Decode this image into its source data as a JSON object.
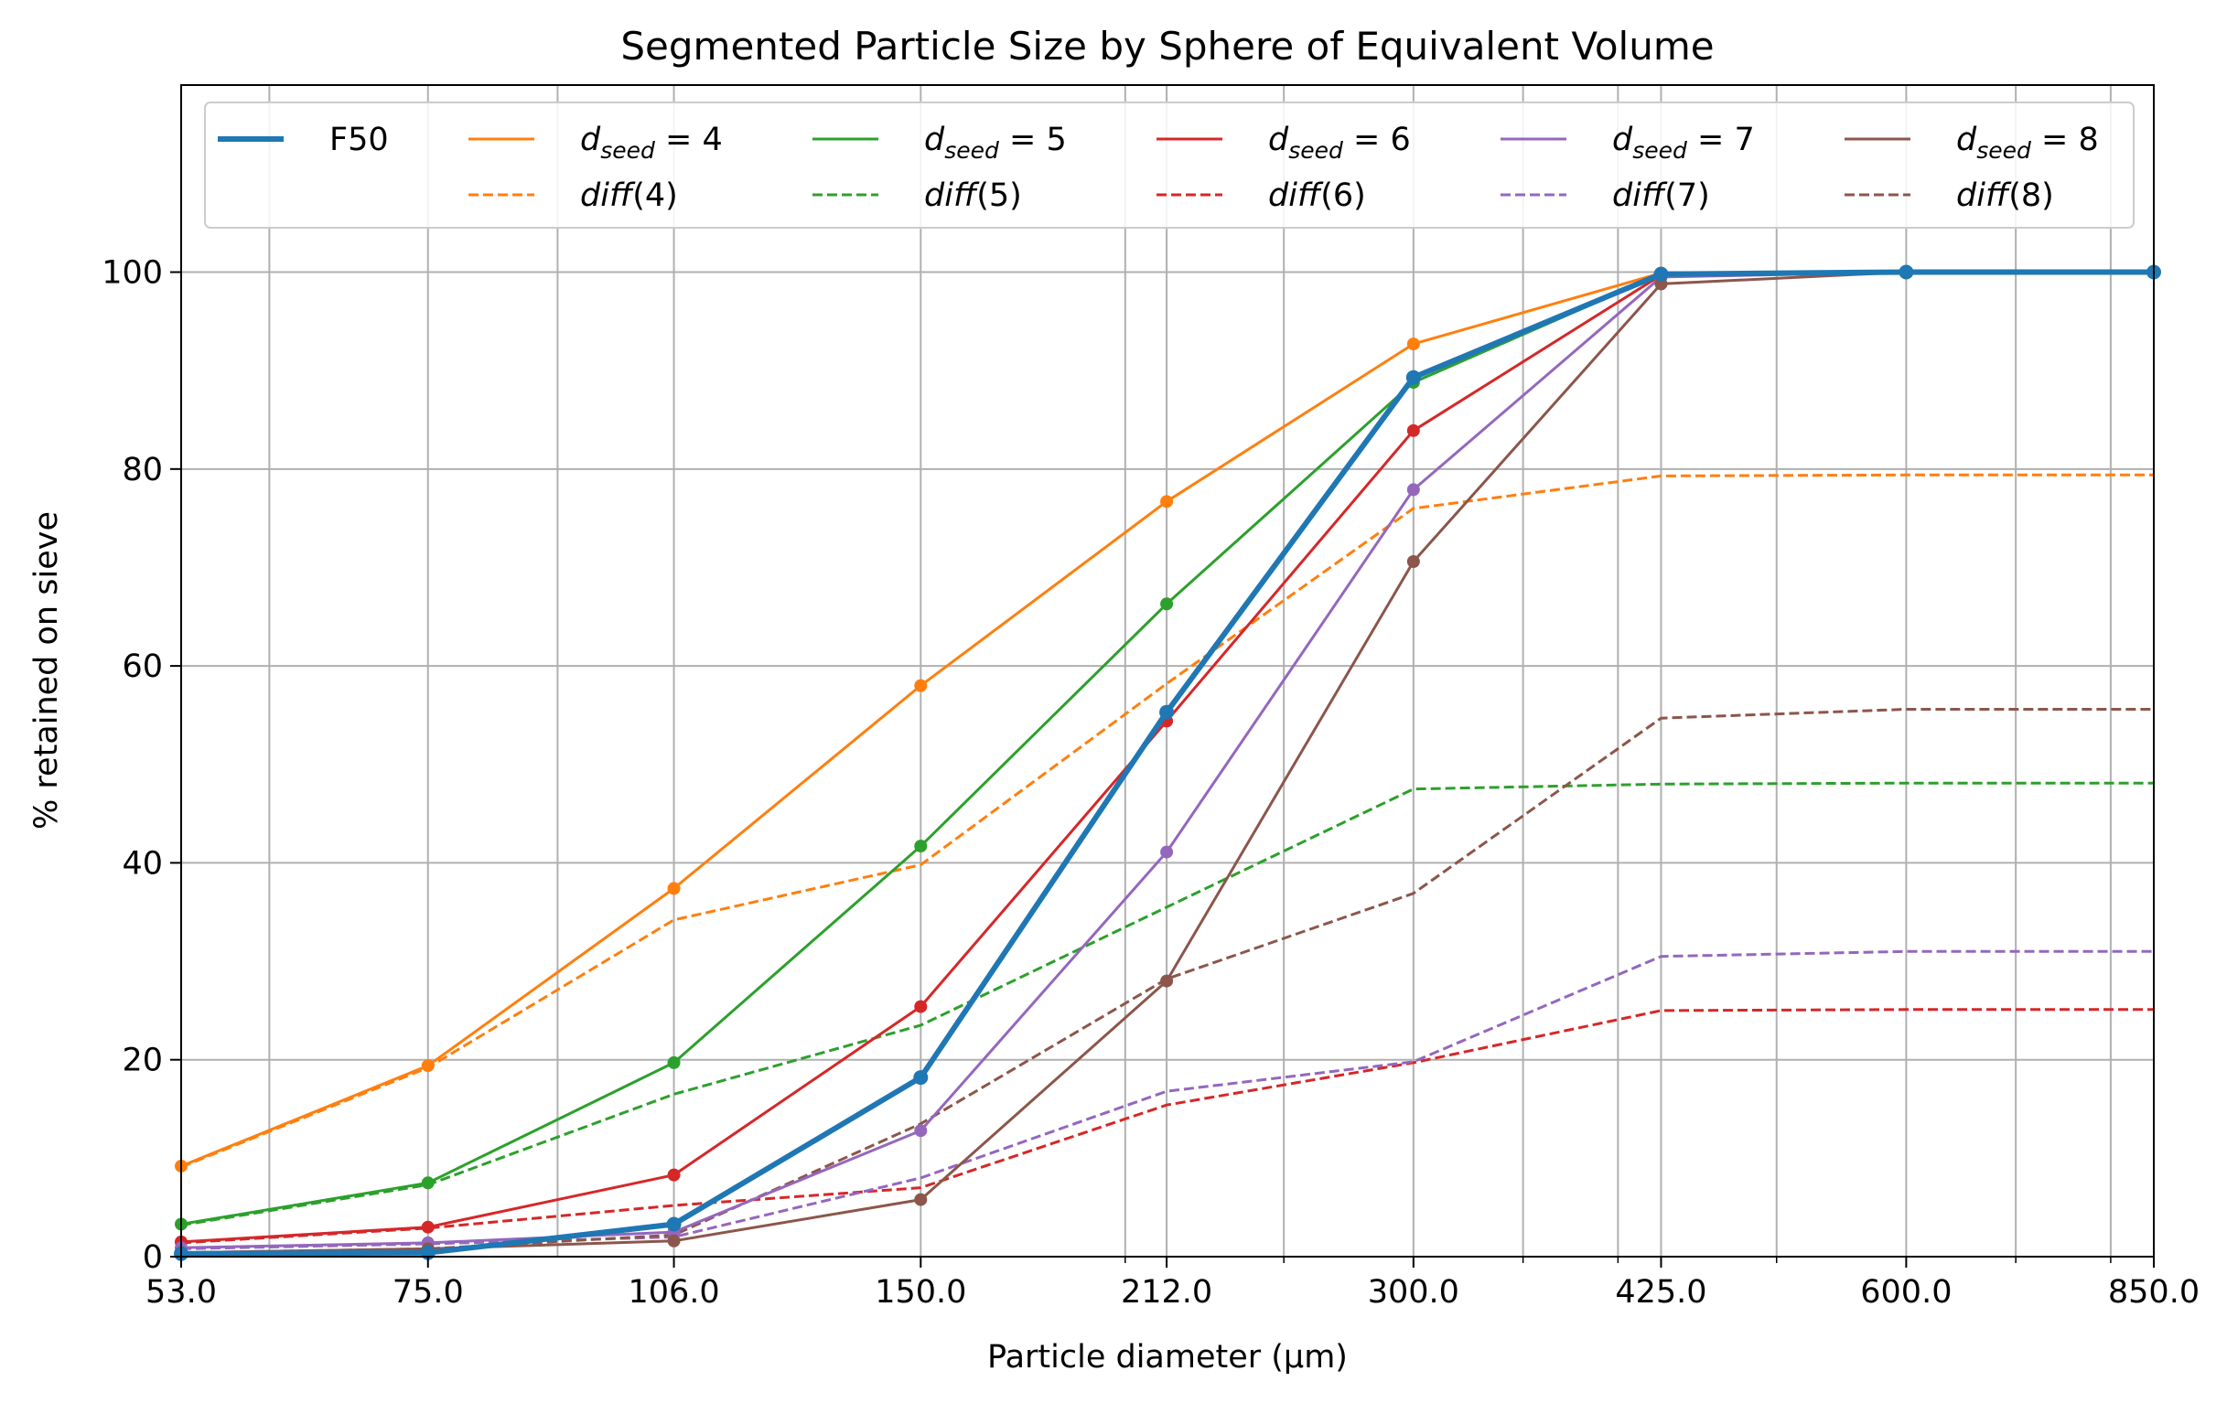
{
  "chart_data": {
    "type": "line",
    "title": "Segmented Particle Size by Sphere of Equivalent Volume",
    "xlabel": "Particle diameter (μm)",
    "ylabel": "% retained on sieve",
    "x_scale": "log",
    "x": [
      53,
      75,
      106,
      150,
      212,
      300,
      425,
      600,
      850
    ],
    "x_tick_labels": [
      "53.0",
      "75.0",
      "106.0",
      "150.0",
      "212.0",
      "300.0",
      "425.0",
      "600.0",
      "850.0"
    ],
    "xlim": [
      53,
      850
    ],
    "ylim": [
      0,
      119
    ],
    "y_ticks": [
      0,
      20,
      40,
      60,
      80,
      100
    ],
    "y_tick_labels": [
      "0",
      "20",
      "40",
      "60",
      "80",
      "100"
    ],
    "grid": true,
    "legend_position": "top",
    "series": [
      {
        "name": "F50",
        "color": "#1f77b4",
        "style": "solid",
        "width": "thick",
        "markers": true,
        "values": [
          0.3,
          0.4,
          3.3,
          18.2,
          55.3,
          89.3,
          99.8,
          100,
          100
        ]
      },
      {
        "name": "dseed = 4",
        "color": "#ff7f0e",
        "style": "solid",
        "markers": true,
        "values": [
          9.2,
          19.4,
          37.4,
          58.0,
          76.7,
          92.7,
          99.9,
          100,
          100
        ]
      },
      {
        "name": "diff(4)",
        "color": "#ff7f0e",
        "style": "dashed",
        "markers": false,
        "values": [
          9.1,
          19.2,
          34.2,
          39.8,
          58.2,
          76.0,
          79.3,
          79.4,
          79.4
        ]
      },
      {
        "name": "dseed = 5",
        "color": "#2ca02c",
        "style": "solid",
        "markers": true,
        "values": [
          3.3,
          7.5,
          19.7,
          41.7,
          66.3,
          88.8,
          99.8,
          100,
          100
        ]
      },
      {
        "name": "diff(5)",
        "color": "#2ca02c",
        "style": "dashed",
        "markers": false,
        "values": [
          3.2,
          7.3,
          16.5,
          23.5,
          35.5,
          47.5,
          48.0,
          48.1,
          48.1
        ]
      },
      {
        "name": "dseed = 6",
        "color": "#d62728",
        "style": "solid",
        "markers": true,
        "values": [
          1.5,
          3.0,
          8.3,
          25.4,
          54.4,
          83.9,
          99.7,
          100,
          100
        ]
      },
      {
        "name": "diff(6)",
        "color": "#d62728",
        "style": "dashed",
        "markers": false,
        "values": [
          1.4,
          2.9,
          5.2,
          7.0,
          15.4,
          19.7,
          25.0,
          25.1,
          25.1
        ]
      },
      {
        "name": "dseed = 7",
        "color": "#9467bd",
        "style": "solid",
        "markers": true,
        "values": [
          0.9,
          1.4,
          2.5,
          12.8,
          41.1,
          77.9,
          99.5,
          100,
          100
        ]
      },
      {
        "name": "diff(7)",
        "color": "#9467bd",
        "style": "dashed",
        "markers": false,
        "values": [
          0.8,
          1.3,
          2.0,
          8.0,
          16.8,
          19.8,
          30.5,
          31.0,
          31.0
        ]
      },
      {
        "name": "dseed = 8",
        "color": "#8c564b",
        "style": "solid",
        "markers": true,
        "values": [
          0.4,
          0.8,
          1.6,
          5.8,
          28.0,
          70.6,
          98.8,
          100,
          100
        ]
      },
      {
        "name": "diff(8)",
        "color": "#8c564b",
        "style": "dashed",
        "markers": false,
        "values": [
          0.4,
          0.8,
          2.2,
          13.5,
          28.2,
          36.9,
          54.7,
          55.6,
          55.6
        ]
      }
    ]
  },
  "legend": {
    "f50": "F50",
    "d_symbol": "d",
    "d_sub": "seed",
    "eq": " = ",
    "diff_fn": "diff",
    "seeds": [
      "4",
      "5",
      "6",
      "7",
      "8"
    ]
  }
}
